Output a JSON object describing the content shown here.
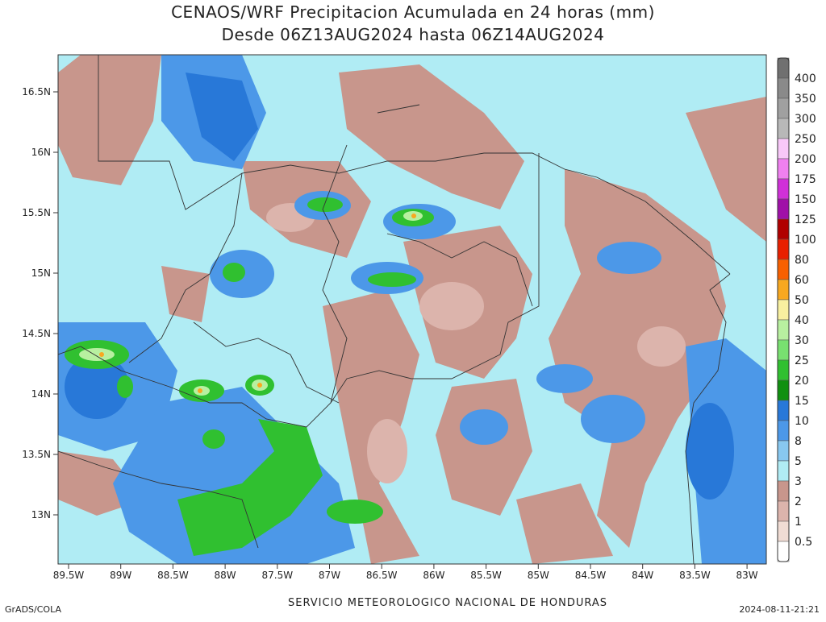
{
  "title": "CENAOS/WRF Precipitacion Acumulada en 24 horas (mm)",
  "subtitle": "Desde 06Z13AUG2024 hasta 06Z14AUG2024",
  "lat_ticks": [
    "16.5N",
    "16N",
    "15.5N",
    "15N",
    "14.5N",
    "14N",
    "13.5N",
    "13N"
  ],
  "lon_ticks": [
    "89.5W",
    "89W",
    "88.5W",
    "88W",
    "87.5W",
    "87W",
    "86.5W",
    "86W",
    "85.5W",
    "85W",
    "84.5W",
    "84W",
    "83.5W",
    "83W"
  ],
  "colorbar": {
    "levels": [
      400,
      350,
      300,
      250,
      200,
      175,
      150,
      125,
      100,
      80,
      60,
      50,
      40,
      30,
      25,
      20,
      15,
      10,
      8,
      5,
      3,
      2,
      1,
      0.5
    ],
    "colors": [
      "#707070",
      "#8a8a8a",
      "#a0a0a0",
      "#b8b8b8",
      "#f8c8f8",
      "#f080f0",
      "#d030d8",
      "#a010a8",
      "#b00000",
      "#e82000",
      "#f86000",
      "#f8a820",
      "#f8f0a0",
      "#b8f0a0",
      "#78e070",
      "#30c030",
      "#109010",
      "#2878d8",
      "#4c98e8",
      "#88c8f0",
      "#b0ecf4",
      "#c8968c",
      "#dcb4ac",
      "#f0dcd4",
      "#ffffff"
    ]
  },
  "footer": {
    "left": "GrADS/COLA",
    "center": "SERVICIO METEOROLOGICO NACIONAL DE HONDURAS",
    "right": "2024-08-11-21:21"
  }
}
